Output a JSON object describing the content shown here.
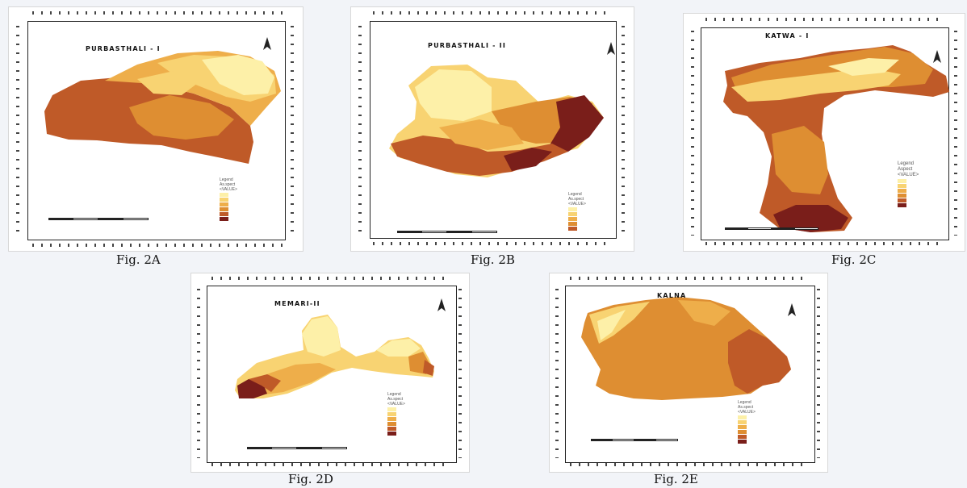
{
  "colors": {
    "c1": "#fdf0a8",
    "c2": "#f8d372",
    "c3": "#eeae4a",
    "c4": "#de8e32",
    "c5": "#bf5a28",
    "c6": "#7a1e1a"
  },
  "panels": [
    {
      "id": "A",
      "title": "PURBASTHALI - I",
      "caption": "Fig. 2A",
      "legend": [
        "Legend",
        "As.spect",
        "<VALUE>"
      ]
    },
    {
      "id": "B",
      "title": "PURBASTHALI - II",
      "caption": "Fig. 2B",
      "legend": [
        "Legend",
        "As.spect",
        "<VALUE>"
      ]
    },
    {
      "id": "C",
      "title": "KATWA - I",
      "caption": "Fig. 2C",
      "legend": [
        "Legend",
        "Aspect",
        "<VALUE>"
      ]
    },
    {
      "id": "D",
      "title": "MEMARI-II",
      "caption": "Fig. 2D",
      "legend": [
        "Legend",
        "As.spect",
        "<VALUE>"
      ]
    },
    {
      "id": "E",
      "title": "KALNA",
      "caption": "Fig. 2E",
      "legend": [
        "Legend",
        "As.spect",
        "<VALUE>"
      ]
    }
  ]
}
